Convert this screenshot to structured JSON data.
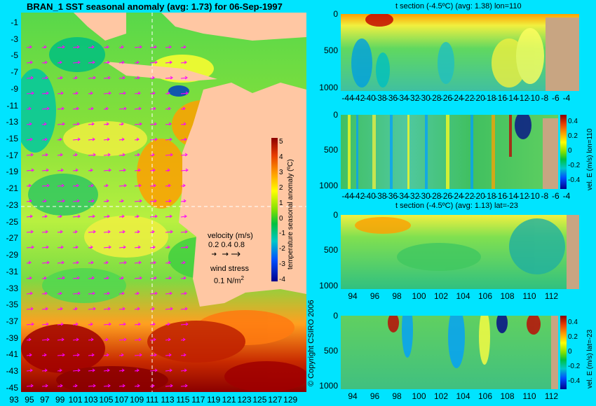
{
  "colors": {
    "background": "#00e4ff",
    "land": "#ffc7a3",
    "bathy_land": "#c8a582",
    "dashed_guides": "#ffffff",
    "arrow": "#ff00ff"
  },
  "icons": [
    "velocity-arrow-icon",
    "wind-stress-arrow-icon"
  ],
  "main": {
    "title": "BRAN_1  SST seasonal anomaly (avg: 1.73) for 06-Sep-1997",
    "copyright": "© Copyright CSIRO 2006",
    "velocity_legend": {
      "title": "velocity (m/s)",
      "scale": "0.2 0.4 0.8",
      "wind_title": "wind stress",
      "wind_value": "0.1 N/m",
      "wind_sup": "2"
    }
  },
  "chart_data": [
    {
      "type": "heatmap",
      "name": "sst-anomaly-map",
      "title": "BRAN_1  SST seasonal anomaly (avg: 1.73) for 06-Sep-1997",
      "x_ticks": [
        "93",
        "95",
        "97",
        "99",
        "101",
        "103",
        "105",
        "107",
        "109",
        "111",
        "113",
        "115",
        "117",
        "119",
        "121",
        "123",
        "125",
        "127",
        "129"
      ],
      "y_ticks": [
        "-1",
        "-3",
        "-5",
        "-7",
        "-9",
        "-11",
        "-13",
        "-15",
        "-17",
        "-19",
        "-21",
        "-23",
        "-25",
        "-27",
        "-29",
        "-31",
        "-33",
        "-35",
        "-37",
        "-39",
        "-41",
        "-43",
        "-45"
      ],
      "xlim": [
        93,
        130
      ],
      "ylim": [
        -45,
        0
      ],
      "average": 1.73,
      "dashed_guides": {
        "lon": 110,
        "lat": -23
      },
      "colorbar": {
        "label": "temperature seasonal anomaly (ºC)",
        "ticks": [
          "5",
          "4",
          "3",
          "2",
          "1",
          "0",
          "-1",
          "-2",
          "-3",
          "-4"
        ],
        "range": [
          -4,
          5
        ]
      }
    },
    {
      "type": "heatmap",
      "name": "temperature-section-lon110",
      "title": "t section (-4.5ºC) (avg: 1.38) lon=110",
      "x_ticks": [
        "-44",
        "-42",
        "-40",
        "-38",
        "-36",
        "-34",
        "-32",
        "-30",
        "-28",
        "-26",
        "-24",
        "-22",
        "-20",
        "-18",
        "-16",
        "-14",
        "-12",
        "-10",
        "-8",
        "-6",
        "-4"
      ],
      "y_ticks": [
        "0",
        "500",
        "1000"
      ],
      "average": 1.38,
      "lon": 110
    },
    {
      "type": "heatmap",
      "name": "velocity-east-section-lon110",
      "x_ticks": [
        "-44",
        "-42",
        "-40",
        "-38",
        "-36",
        "-34",
        "-32",
        "-30",
        "-28",
        "-26",
        "-24",
        "-22",
        "-20",
        "-18",
        "-16",
        "-14",
        "-12",
        "-10",
        "-8",
        "-6",
        "-4"
      ],
      "y_ticks": [
        "0",
        "500",
        "1000"
      ],
      "colorbar": {
        "label": "vel. E (m/s) lon=110",
        "ticks": [
          "0.4",
          "0.2",
          "0",
          "-0.2",
          "-0.4"
        ],
        "range": [
          -0.4,
          0.5
        ]
      }
    },
    {
      "type": "heatmap",
      "name": "temperature-section-lat-23",
      "title": "t section (-4.5ºC) (avg: 1.13) lat=-23",
      "x_ticks": [
        "94",
        "96",
        "98",
        "100",
        "102",
        "104",
        "106",
        "108",
        "110",
        "112"
      ],
      "y_ticks": [
        "0",
        "500",
        "1000"
      ],
      "average": 1.13,
      "lat": -23
    },
    {
      "type": "heatmap",
      "name": "velocity-east-section-lat-23",
      "x_ticks": [
        "94",
        "96",
        "98",
        "100",
        "102",
        "104",
        "106",
        "108",
        "110",
        "112"
      ],
      "y_ticks": [
        "0",
        "500",
        "1000"
      ],
      "colorbar": {
        "label": "vel. E (m/s) lat=-23",
        "ticks": [
          "0.4",
          "0.2",
          "0",
          "-0.2",
          "-0.4"
        ],
        "range": [
          -0.4,
          0.5
        ]
      }
    }
  ]
}
